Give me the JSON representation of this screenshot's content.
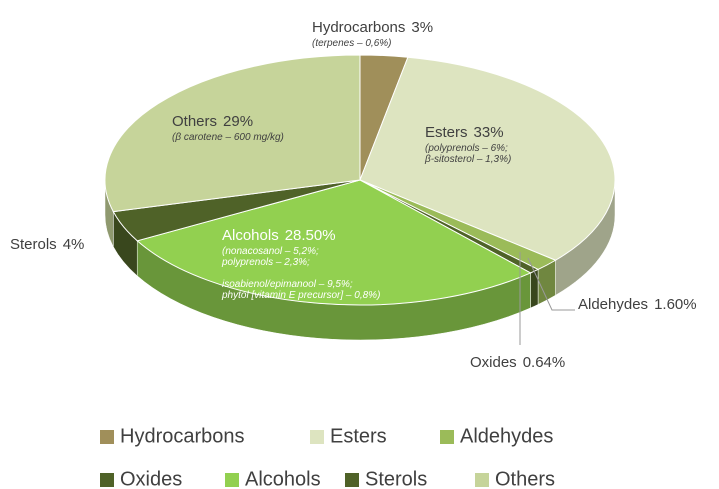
{
  "chart_data": {
    "type": "pie",
    "categories": [
      "Hydrocarbons",
      "Esters",
      "Aldehydes",
      "Oxides",
      "Alcohols",
      "Sterols",
      "Others"
    ],
    "values": [
      3,
      33,
      1.6,
      0.64,
      28.5,
      4,
      29
    ],
    "value_labels": [
      "3%",
      "33%",
      "1.60%",
      "0.64%",
      "28.50%",
      "4%",
      "29%"
    ],
    "colors": [
      "#a08f5a",
      "#dde4c0",
      "#9bbb59",
      "#4f6228",
      "#92d050",
      "#4f6228",
      "#c6d49a"
    ],
    "notes": [
      [
        "(terpenes – 0,6%)"
      ],
      [
        "(polyprenols – 6%;",
        "β-sitosterol – 1,3%)"
      ],
      null,
      null,
      [
        "(nonacosanol – 5,2%;",
        "polyprenols – 2,3%;",
        "isoabienol/epimanool – 9,5%;",
        "phytol [vitamin E precursor] – 0,8%)"
      ],
      null,
      [
        "(β carotene – 600 mg/kg)"
      ]
    ],
    "legend": true
  }
}
